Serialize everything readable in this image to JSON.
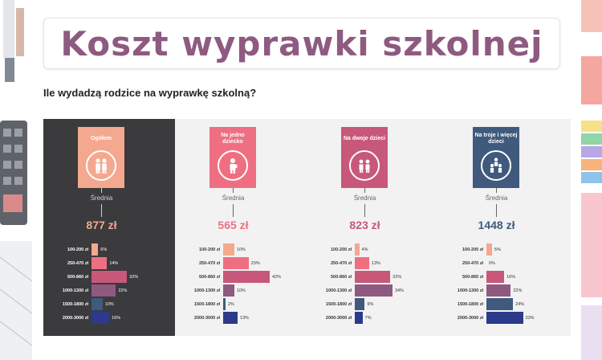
{
  "title": "Koszt wyprawki szkolnej",
  "subtitle": "Ile wydadzą rodzice na wyprawkę szkolną?",
  "colors": {
    "title": "#8e5a80",
    "dark_panel": "#3b3a3d",
    "light_panel": "#f2f2f3",
    "bars": [
      "#f3a88f",
      "#ef6f82",
      "#c8587a",
      "#8e5a80",
      "#3f5a7c",
      "#2b3a8a"
    ]
  },
  "chart_data": [
    {
      "type": "bar",
      "group": "Ogółem",
      "icon": "family-icon",
      "card_color": "#f3a88f",
      "avg_label": "Średnia",
      "avg": "877 zł",
      "categories": [
        "100-200 zł",
        "250-470 zł",
        "500-860 zł",
        "1000-1300 zł",
        "1500-1800 zł",
        "2000-3000 zł"
      ],
      "values": [
        6,
        14,
        32,
        22,
        10,
        16
      ],
      "value_labels": [
        "6%",
        "14%",
        "32%",
        "22%",
        "10%",
        "16%"
      ]
    },
    {
      "type": "bar",
      "group": "Na jedno dziecko",
      "icon": "one-child-icon",
      "card_color": "#ef6f82",
      "avg_label": "Średnia",
      "avg": "565 zł",
      "categories": [
        "100-200 zł",
        "250-470 zł",
        "500-860 zł",
        "1000-1300 zł",
        "1500-1800 zł",
        "2000-3000 zł"
      ],
      "values": [
        10,
        23,
        42,
        10,
        2,
        13
      ],
      "value_labels": [
        "10%",
        "23%",
        "42%",
        "10%",
        "2%",
        "13%"
      ]
    },
    {
      "type": "bar",
      "group": "Na dwoje dzieci",
      "icon": "two-children-icon",
      "card_color": "#c8587a",
      "avg_label": "Średnia",
      "avg": "823 zł",
      "categories": [
        "100-200 zł",
        "250-470 zł",
        "500-860 zł",
        "1000-1300 zł",
        "1500-1800 zł",
        "2000-3000 zł"
      ],
      "values": [
        4,
        13,
        32,
        34,
        9,
        7
      ],
      "value_labels": [
        "4%",
        "13%",
        "32%",
        "34%",
        "9%",
        "7%"
      ]
    },
    {
      "type": "bar",
      "group": "Na troje i więcej dzieci",
      "icon": "three-children-icon",
      "card_color": "#3f5a7c",
      "avg_label": "Średnia",
      "avg": "1448 zł",
      "categories": [
        "100-200 zł",
        "250-470 zł",
        "500-860 zł",
        "1000-1300 zł",
        "1500-1800 zł",
        "2000-3000 zł"
      ],
      "values": [
        5,
        0,
        16,
        22,
        24,
        33
      ],
      "value_labels": [
        "5%",
        "0%",
        "16%",
        "22%",
        "24%",
        "33%"
      ]
    }
  ]
}
